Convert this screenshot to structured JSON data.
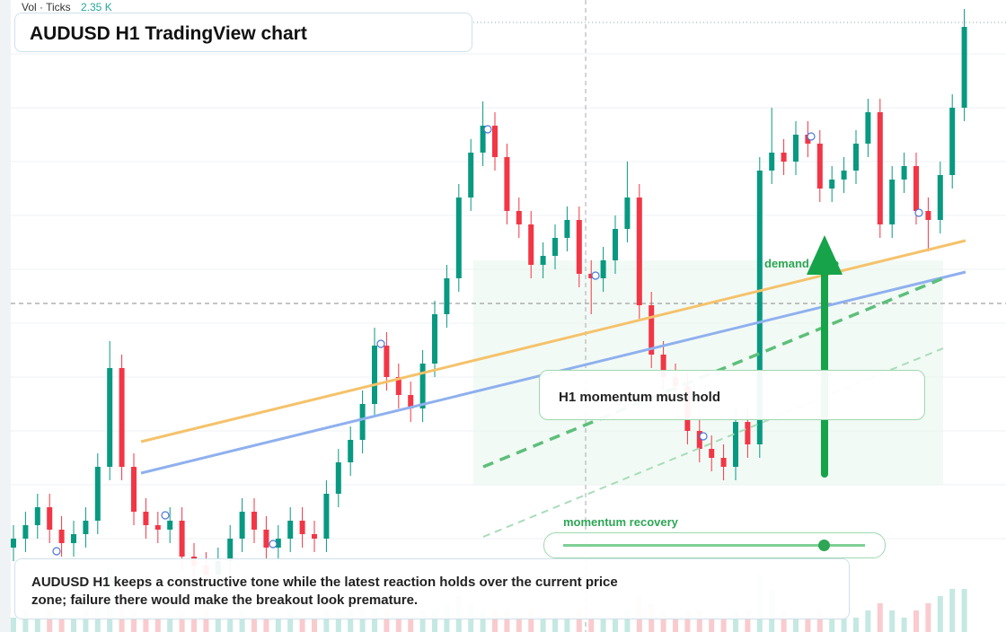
{
  "header": {
    "title": "AUDUSD H1 TradingView chart",
    "vol_label": "Vol · Ticks",
    "vol_value": "2.35 K"
  },
  "annotations": {
    "zone": "demand zone",
    "callout": "H1 momentum must hold",
    "slider": "momentum recovery"
  },
  "caption": "AUDUSD H1 keeps a constructive tone while the latest reaction holds over the current price zone; failure there would make the breakout look premature.",
  "chart": {
    "ylim": [
      0,
      70.4
    ],
    "vlim": [
      0,
      10
    ],
    "candles": [
      [
        9.4,
        11.9,
        7.9,
        10.4
      ],
      [
        10.4,
        13.4,
        8.9,
        11.9
      ],
      [
        11.9,
        15.4,
        10.4,
        13.9
      ],
      [
        13.9,
        15.4,
        9.9,
        11.4
      ],
      [
        11.4,
        12.9,
        8.4,
        9.9
      ],
      [
        9.9,
        12.4,
        8.4,
        10.9
      ],
      [
        10.9,
        13.9,
        9.4,
        12.4
      ],
      [
        12.4,
        19.9,
        10.9,
        18.4
      ],
      [
        18.4,
        32.4,
        16.9,
        29.4
      ],
      [
        29.4,
        30.9,
        16.9,
        18.4
      ],
      [
        18.4,
        19.9,
        11.9,
        13.4
      ],
      [
        13.4,
        14.9,
        10.4,
        11.9
      ],
      [
        11.9,
        13.4,
        9.9,
        11.4
      ],
      [
        11.4,
        13.9,
        9.9,
        12.4
      ],
      [
        12.4,
        13.9,
        6.9,
        8.4
      ],
      [
        8.4,
        9.9,
        5.9,
        7.4
      ],
      [
        7.4,
        8.9,
        4.9,
        6.4
      ],
      [
        6.4,
        9.4,
        4.9,
        7.9
      ],
      [
        7.9,
        11.9,
        6.4,
        10.4
      ],
      [
        10.4,
        14.9,
        8.9,
        13.4
      ],
      [
        13.4,
        14.9,
        9.9,
        11.4
      ],
      [
        11.4,
        12.9,
        7.9,
        9.4
      ],
      [
        9.4,
        11.9,
        7.9,
        10.4
      ],
      [
        10.4,
        13.9,
        8.9,
        12.4
      ],
      [
        12.4,
        13.9,
        9.4,
        10.9
      ],
      [
        10.9,
        12.4,
        8.9,
        10.4
      ],
      [
        10.4,
        16.9,
        8.9,
        15.4
      ],
      [
        15.4,
        20.4,
        13.9,
        18.9
      ],
      [
        18.9,
        22.9,
        17.4,
        21.4
      ],
      [
        21.4,
        26.9,
        19.9,
        25.4
      ],
      [
        25.4,
        33.9,
        23.9,
        31.9
      ],
      [
        31.9,
        33.4,
        26.9,
        28.4
      ],
      [
        28.4,
        29.9,
        24.9,
        26.4
      ],
      [
        26.4,
        27.9,
        23.4,
        24.9
      ],
      [
        24.9,
        31.4,
        23.4,
        29.9
      ],
      [
        29.9,
        36.9,
        28.4,
        35.4
      ],
      [
        35.4,
        40.9,
        33.9,
        39.4
      ],
      [
        39.4,
        49.9,
        37.9,
        48.4
      ],
      [
        48.4,
        54.9,
        46.9,
        53.4
      ],
      [
        53.4,
        59.1,
        51.9,
        56.4
      ],
      [
        56.4,
        57.9,
        51.4,
        52.9
      ],
      [
        52.9,
        54.4,
        45.4,
        46.9
      ],
      [
        46.9,
        48.4,
        43.9,
        45.4
      ],
      [
        45.4,
        46.9,
        39.4,
        40.9
      ],
      [
        40.9,
        43.4,
        39.4,
        41.9
      ],
      [
        41.9,
        45.4,
        40.4,
        43.9
      ],
      [
        43.9,
        47.4,
        42.4,
        45.9
      ],
      [
        45.9,
        47.4,
        38.4,
        39.9
      ],
      [
        39.9,
        41.4,
        35.4,
        39.4
      ],
      [
        39.4,
        42.9,
        37.9,
        41.4
      ],
      [
        41.4,
        46.4,
        39.9,
        44.9
      ],
      [
        44.9,
        52.4,
        43.4,
        48.4
      ],
      [
        48.4,
        49.9,
        34.9,
        36.4
      ],
      [
        36.4,
        37.9,
        29.4,
        30.9
      ],
      [
        30.9,
        32.4,
        26.9,
        28.4
      ],
      [
        28.4,
        29.9,
        25.9,
        27.4
      ],
      [
        27.4,
        28.9,
        20.9,
        22.4
      ],
      [
        22.4,
        23.9,
        18.9,
        20.4
      ],
      [
        20.4,
        21.9,
        17.9,
        19.4
      ],
      [
        19.4,
        20.9,
        16.9,
        18.4
      ],
      [
        18.4,
        24.9,
        16.9,
        23.4
      ],
      [
        23.4,
        24.9,
        19.4,
        20.9
      ],
      [
        20.9,
        52.9,
        19.4,
        51.4
      ],
      [
        51.4,
        58.4,
        49.9,
        53.4
      ],
      [
        53.4,
        54.9,
        50.9,
        52.4
      ],
      [
        52.4,
        56.9,
        50.9,
        55.4
      ],
      [
        55.4,
        56.9,
        52.9,
        54.4
      ],
      [
        54.4,
        55.9,
        47.9,
        49.4
      ],
      [
        49.4,
        51.9,
        47.9,
        50.4
      ],
      [
        50.4,
        52.9,
        48.9,
        51.4
      ],
      [
        51.4,
        55.9,
        49.9,
        54.4
      ],
      [
        54.4,
        59.4,
        52.9,
        57.9
      ],
      [
        57.9,
        59.4,
        43.9,
        45.4
      ],
      [
        45.4,
        51.9,
        43.9,
        50.4
      ],
      [
        50.4,
        53.4,
        48.9,
        51.9
      ],
      [
        51.9,
        53.4,
        45.4,
        46.9
      ],
      [
        46.9,
        48.4,
        42.4,
        45.9
      ],
      [
        45.9,
        52.4,
        44.4,
        50.9
      ],
      [
        50.9,
        59.9,
        49.4,
        58.4
      ],
      [
        58.4,
        69.4,
        56.9,
        67.4
      ]
    ],
    "volume": [
      2,
      3,
      2,
      3,
      2,
      2,
      3,
      5,
      9,
      6,
      3,
      2,
      2,
      2,
      3,
      2,
      3,
      2,
      2,
      3,
      2,
      2,
      2,
      3,
      2,
      2,
      3,
      3,
      3,
      4,
      5,
      3,
      2,
      2,
      3,
      3,
      4,
      5,
      4,
      3,
      3,
      3,
      2,
      3,
      2,
      2,
      2,
      3,
      2,
      2,
      2,
      3,
      5,
      4,
      3,
      2,
      3,
      3,
      2,
      2,
      3,
      3,
      8,
      6,
      3,
      2,
      2,
      3,
      2,
      2,
      2,
      3,
      4,
      3,
      2,
      3,
      4,
      5,
      6,
      6
    ]
  }
}
